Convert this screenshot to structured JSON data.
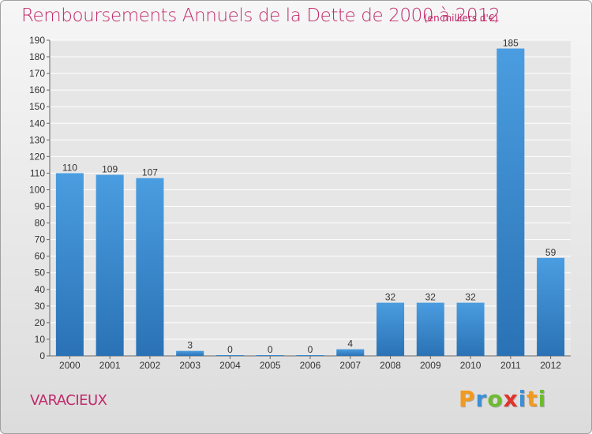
{
  "chart_data": {
    "type": "bar",
    "title": "Remboursements Annuels de la Dette de 2000 à 2012",
    "subtitle": "(en milliers d'€)",
    "categories": [
      "2000",
      "2001",
      "2002",
      "2003",
      "2004",
      "2005",
      "2006",
      "2007",
      "2008",
      "2009",
      "2010",
      "2011",
      "2012"
    ],
    "values": [
      110,
      109,
      107,
      3,
      0,
      0,
      0,
      4,
      32,
      32,
      32,
      185,
      59
    ],
    "value_labels": [
      "110",
      "109",
      "107",
      "3",
      "0",
      "0",
      "0",
      "4",
      "32",
      "32",
      "32",
      "185",
      "59"
    ],
    "ylim": [
      0,
      190
    ],
    "yticks": [
      0,
      10,
      20,
      30,
      40,
      50,
      60,
      70,
      80,
      90,
      100,
      110,
      120,
      130,
      140,
      150,
      160,
      170,
      180,
      190
    ],
    "grid": true,
    "bar_color": "#4a9de0",
    "bar_color_dark": "#2a72b5"
  },
  "footer": {
    "place": "VARACIEUX",
    "logo": "Proxiti",
    "logo_colors": [
      "#f39a1e",
      "#3a8fd8",
      "#6dbb2e",
      "#e2322c",
      "#3a8fd8",
      "#f39a1e",
      "#6dbb2e"
    ]
  },
  "colors": {
    "accent": "#c02a6a"
  }
}
